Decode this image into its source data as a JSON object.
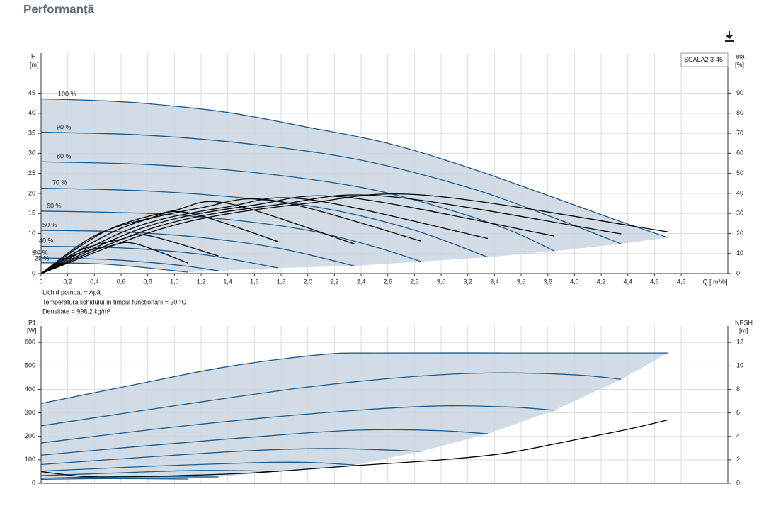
{
  "page": {
    "title": "Performanță"
  },
  "notes": [
    "Lichid pompat = Apă",
    "Temperatura lichidului în timpul funcționării = 20  °C",
    "Densitate = 998.2  kg/m³"
  ],
  "chart_data": [
    {
      "type": "line",
      "legend": "SCALA2 3-45",
      "x_label": "Q [ m³/h]",
      "y_label": "H",
      "y_unit": "[m]",
      "y2_label": "eta",
      "y2_unit": "[%]",
      "xlim": [
        0,
        5.15
      ],
      "ylim": [
        0,
        55
      ],
      "y2lim": [
        0,
        110
      ],
      "grid": true,
      "area_color": "#c9d6e3",
      "xticks": [
        0,
        {
          "value": 0.2,
          "label": "0,2"
        },
        {
          "value": 0.4,
          "label": "0,4"
        },
        {
          "value": 0.6,
          "label": "0,6"
        },
        {
          "value": 0.8,
          "label": "0,8"
        },
        {
          "value": 1.0,
          "label": "1,0"
        },
        {
          "value": 1.2,
          "label": "1,2"
        },
        {
          "value": 1.4,
          "label": "1,4"
        },
        {
          "value": 1.6,
          "label": "1,6"
        },
        {
          "value": 1.8,
          "label": "1,8"
        },
        {
          "value": 2.0,
          "label": "2,0"
        },
        {
          "value": 2.2,
          "label": "2,2"
        },
        {
          "value": 2.4,
          "label": "2,4"
        },
        {
          "value": 2.6,
          "label": "2,6"
        },
        {
          "value": 2.8,
          "label": "2,8"
        },
        {
          "value": 3.0,
          "label": "3,0"
        },
        {
          "value": 3.2,
          "label": "3,2"
        },
        {
          "value": 3.4,
          "label": "3,4"
        },
        {
          "value": 3.6,
          "label": "3,6"
        },
        {
          "value": 3.8,
          "label": "3,8"
        },
        {
          "value": 4.0,
          "label": "4,0"
        },
        {
          "value": 4.2,
          "label": "4,2"
        },
        {
          "value": 4.4,
          "label": "4,4"
        },
        {
          "value": 4.6,
          "label": "4,6"
        },
        {
          "value": 4.8,
          "label": "4,8"
        }
      ],
      "yticks": [
        0,
        5,
        10,
        15,
        20,
        25,
        30,
        35,
        40,
        45
      ],
      "y2ticks": [
        0,
        10,
        20,
        30,
        40,
        50,
        60,
        70,
        80,
        90
      ],
      "series": [
        {
          "name": "100 %",
          "color": "#1f5a8c",
          "x": [
            0,
            0.4,
            0.8,
            1.4,
            2.0,
            2.6,
            3.2,
            3.8,
            4.3,
            4.7
          ],
          "values": [
            43.6,
            43.2,
            42.4,
            40.2,
            36.5,
            32.5,
            26.5,
            19.5,
            13.5,
            9
          ]
        },
        {
          "name": "90 %",
          "color": "#1f5a8c",
          "x": [
            0,
            0.8,
            1.6,
            2.4,
            3.2,
            3.8,
            4.35
          ],
          "values": [
            35.3,
            34.5,
            32.2,
            28.3,
            21.5,
            14.5,
            7.4
          ]
        },
        {
          "name": "80 %",
          "color": "#1f5a8c",
          "x": [
            0,
            0.8,
            1.6,
            2.4,
            3.0,
            3.5,
            3.85
          ],
          "values": [
            27.9,
            27.2,
            25.2,
            21.5,
            16.5,
            11,
            5.6
          ]
        },
        {
          "name": "70 %",
          "color": "#1f5a8c",
          "x": [
            0,
            0.8,
            1.6,
            2.2,
            2.8,
            3.35
          ],
          "values": [
            21.3,
            20.6,
            18.6,
            15.8,
            10.8,
            4.1
          ]
        },
        {
          "name": "60 %",
          "color": "#1f5a8c",
          "x": [
            0,
            0.8,
            1.4,
            2.0,
            2.5,
            2.85
          ],
          "values": [
            15.6,
            15,
            13.5,
            10.8,
            6.7,
            3
          ]
        },
        {
          "name": "50 %",
          "color": "#1f5a8c",
          "x": [
            0,
            0.6,
            1.2,
            1.8,
            2.35
          ],
          "values": [
            10.8,
            10.4,
            9,
            6.2,
            1.9
          ]
        },
        {
          "name": "40 %",
          "color": "#1f5a8c",
          "x": [
            0,
            0.6,
            1.2,
            1.78
          ],
          "values": [
            6.8,
            6.4,
            4.8,
            1.4
          ]
        },
        {
          "name": "30 %",
          "color": "#1f5a8c",
          "x": [
            0,
            0.5,
            1.0,
            1.33
          ],
          "values": [
            3.9,
            3.5,
            2.2,
            0.7
          ]
        },
        {
          "name": "25 %",
          "color": "#1f5a8c",
          "x": [
            0,
            0.5,
            1.1
          ],
          "values": [
            2.7,
            2.3,
            0.35
          ]
        },
        {
          "axis": "y2",
          "color": "#000000",
          "x": [
            0,
            1.0,
            2.0,
            2.9,
            4.7
          ],
          "values": [
            0,
            24.2,
            35.1,
            39,
            20.8
          ]
        },
        {
          "axis": "y2",
          "color": "#000000",
          "x": [
            0,
            0.9,
            1.8,
            2.6,
            4.35
          ],
          "values": [
            0,
            24,
            34.6,
            38.5,
            19.8
          ]
        },
        {
          "axis": "y2",
          "color": "#000000",
          "x": [
            0,
            0.8,
            1.6,
            2.3,
            3.85
          ],
          "values": [
            0,
            23.6,
            34.2,
            38,
            18.7
          ]
        },
        {
          "axis": "y2",
          "color": "#000000",
          "x": [
            0,
            0.7,
            1.4,
            2.0,
            3.35
          ],
          "values": [
            0,
            23,
            33.3,
            37,
            17.5
          ]
        },
        {
          "axis": "y2",
          "color": "#000000",
          "x": [
            0,
            0.6,
            1.2,
            1.75,
            2.85
          ],
          "values": [
            0,
            22.6,
            32.8,
            36.4,
            16.2
          ]
        },
        {
          "axis": "y2",
          "color": "#000000",
          "x": [
            0,
            0.5,
            1.0,
            1.4,
            2.35
          ],
          "values": [
            0,
            21.7,
            31.5,
            35,
            14.8
          ]
        },
        {
          "axis": "y2",
          "color": "#000000",
          "x": [
            0,
            0.4,
            0.8,
            1.1,
            1.78
          ],
          "values": [
            0,
            18.8,
            27.4,
            30.4,
            15.9
          ]
        },
        {
          "axis": "y2",
          "color": "#000000",
          "x": [
            0,
            0.3,
            0.6,
            0.8,
            1.33
          ],
          "values": [
            0,
            11.8,
            17.1,
            19,
            8.8
          ]
        },
        {
          "axis": "y2",
          "color": "#000000",
          "x": [
            0,
            0.25,
            0.5,
            0.7,
            1.1
          ],
          "values": [
            0,
            9.3,
            13.5,
            15,
            5.3
          ]
        }
      ]
    },
    {
      "type": "line",
      "y_label": "P1",
      "y_unit": "[W]",
      "y2_label": "NPSH",
      "y2_unit": "[m]",
      "xlim": [
        0,
        5.15
      ],
      "ylim": [
        0,
        670
      ],
      "y2lim": [
        0,
        13.4
      ],
      "grid": true,
      "area_color": "#c9d6e3",
      "yticks": [
        0,
        100,
        200,
        300,
        400,
        500,
        600
      ],
      "y2ticks": [
        0,
        2,
        4,
        6,
        8,
        10,
        12
      ],
      "series": [
        {
          "color": "#1f5a8c",
          "x": [
            0,
            0.7,
            1.4,
            2.1,
            2.5,
            3.5,
            4.7
          ],
          "values": [
            340,
            420,
            497,
            548,
            555,
            555,
            555
          ]
        },
        {
          "color": "#1f5a8c",
          "x": [
            0,
            1.0,
            2.0,
            2.8,
            3.4,
            4.0,
            4.35
          ],
          "values": [
            245,
            330,
            410,
            455,
            470,
            462,
            443
          ]
        },
        {
          "color": "#1f5a8c",
          "x": [
            0,
            1.0,
            2.0,
            2.9,
            3.5,
            3.85
          ],
          "values": [
            172,
            240,
            295,
            328,
            325,
            311
          ]
        },
        {
          "color": "#1f5a8c",
          "x": [
            0,
            1.0,
            2.0,
            2.5,
            3.0,
            3.35
          ],
          "values": [
            120,
            170,
            215,
            228,
            224,
            211
          ]
        },
        {
          "color": "#1f5a8c",
          "x": [
            0,
            0.8,
            1.6,
            2.2,
            2.85
          ],
          "values": [
            80,
            112,
            140,
            148,
            136
          ]
        },
        {
          "color": "#1f5a8c",
          "x": [
            0,
            0.8,
            1.6,
            2.0,
            2.35
          ],
          "values": [
            52,
            72,
            88,
            89,
            78
          ]
        },
        {
          "color": "#1f5a8c",
          "x": [
            0,
            0.6,
            1.2,
            1.78
          ],
          "values": [
            33,
            45,
            55,
            51
          ]
        },
        {
          "color": "#1f5a8c",
          "x": [
            0,
            0.6,
            1.33
          ],
          "values": [
            22,
            28,
            27
          ]
        },
        {
          "color": "#1f5a8c",
          "x": [
            0,
            0.5,
            1.1
          ],
          "values": [
            17,
            20,
            18
          ]
        },
        {
          "axis": "y2",
          "color": "#000000",
          "x": [
            0,
            0.3,
            0.6,
            1.0,
            1.6,
            2.35,
            3.0,
            3.5,
            4.0,
            4.4,
            4.7
          ],
          "values": [
            1.0,
            0.6,
            0.55,
            0.65,
            0.9,
            1.5,
            2.0,
            2.6,
            3.7,
            4.6,
            5.4
          ]
        }
      ]
    }
  ]
}
